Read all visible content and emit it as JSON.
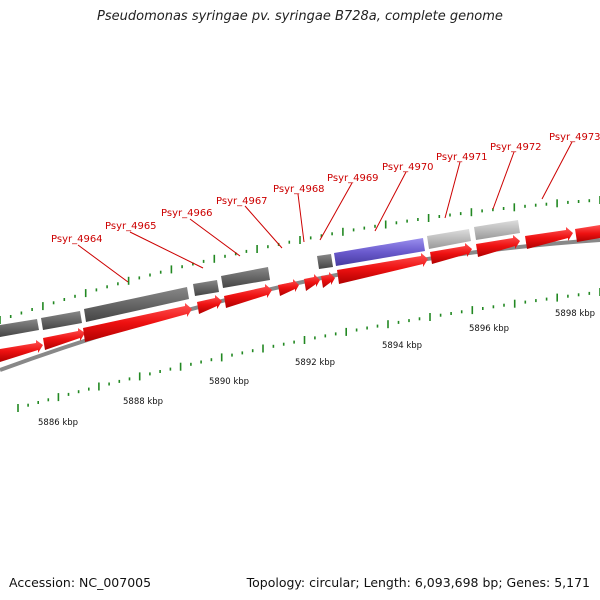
{
  "title": "Pseudomonas syringae pv. syringae B728a, complete genome",
  "accession": "Accession: NC_007005",
  "summary": "Topology: circular; Length: 6,093,698 bp; Genes: 5,171",
  "scale_labels": [
    {
      "text": "5886 kbp"
    },
    {
      "text": "5888 kbp"
    },
    {
      "text": "5890 kbp"
    },
    {
      "text": "5892 kbp"
    },
    {
      "text": "5894 kbp"
    },
    {
      "text": "5896 kbp"
    },
    {
      "text": "5898 kbp"
    }
  ],
  "genes": [
    {
      "label": "Psyr_4964"
    },
    {
      "label": "Psyr_4965"
    },
    {
      "label": "Psyr_4966"
    },
    {
      "label": "Psyr_4967"
    },
    {
      "label": "Psyr_4968"
    },
    {
      "label": "Psyr_4969"
    },
    {
      "label": "Psyr_4970"
    },
    {
      "label": "Psyr_4971"
    },
    {
      "label": "Psyr_4972"
    },
    {
      "label": "Psyr_4973"
    }
  ],
  "colors": {
    "cds": "#ee1111",
    "gene_dark": "#666666",
    "gene_light": "#bbbbbb",
    "highlight": "#6a5acd",
    "backbone": "#888888",
    "tick": "#228822",
    "label": "#cc0000"
  }
}
